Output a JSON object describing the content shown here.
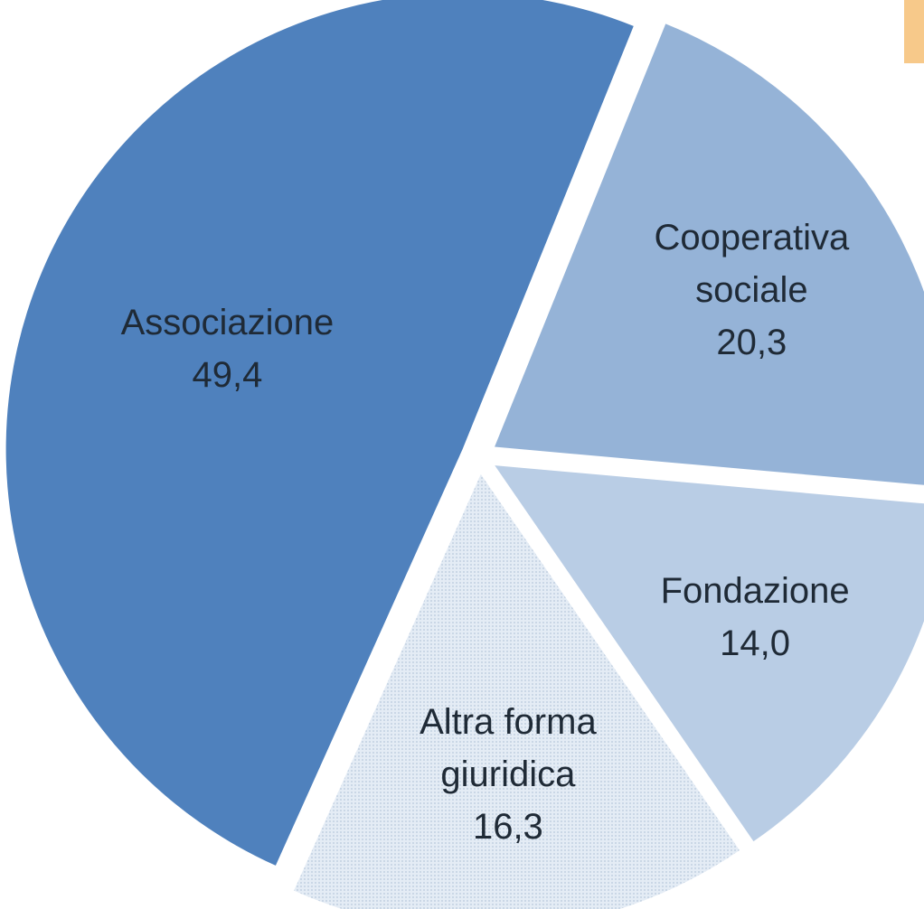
{
  "chart_data": {
    "type": "pie",
    "categories": [
      "Cooperativa sociale",
      "Fondazione",
      "Altra forma giuridica",
      "Associazione"
    ],
    "values": [
      20.3,
      14.0,
      16.3,
      49.4
    ],
    "value_labels": [
      "20,3",
      "14,0",
      "16,3",
      "49,4"
    ],
    "colors": [
      "#95b3d7",
      "#b9cde5",
      "#dce6f2",
      "#4f81bd"
    ]
  }
}
